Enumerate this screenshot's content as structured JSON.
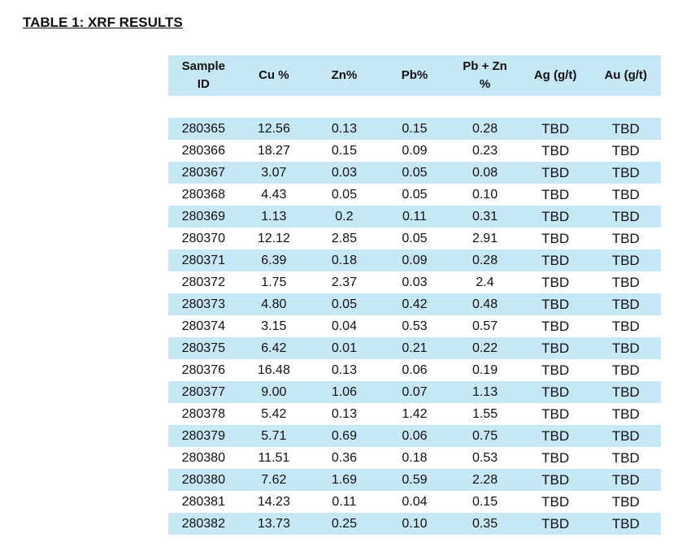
{
  "title": "TABLE 1:  XRF RESULTS",
  "table": {
    "headers": [
      "Sample ID",
      "Cu %",
      "Zn%",
      "Pb%",
      "Pb + Zn %",
      "Ag (g/t)",
      "Au (g/t)"
    ],
    "rows": [
      [
        "280365",
        "12.56",
        "0.13",
        "0.15",
        "0.28",
        "TBD",
        "TBD"
      ],
      [
        "280366",
        "18.27",
        "0.15",
        "0.09",
        "0.23",
        "TBD",
        "TBD"
      ],
      [
        "280367",
        "3.07",
        "0.03",
        "0.05",
        "0.08",
        "TBD",
        "TBD"
      ],
      [
        "280368",
        "4.43",
        "0.05",
        "0.05",
        "0.10",
        "TBD",
        "TBD"
      ],
      [
        "280369",
        "1.13",
        "0.2",
        "0.11",
        "0.31",
        "TBD",
        "TBD"
      ],
      [
        "280370",
        "12.12",
        "2.85",
        "0.05",
        "2.91",
        "TBD",
        "TBD"
      ],
      [
        "280371",
        "6.39",
        "0.18",
        "0.09",
        "0.28",
        "TBD",
        "TBD"
      ],
      [
        "280372",
        "1.75",
        "2.37",
        "0.03",
        "2.4",
        "TBD",
        "TBD"
      ],
      [
        "280373",
        "4.80",
        "0.05",
        "0.42",
        "0.48",
        "TBD",
        "TBD"
      ],
      [
        "280374",
        "3.15",
        "0.04",
        "0.53",
        "0.57",
        "TBD",
        "TBD"
      ],
      [
        "280375",
        "6.42",
        "0.01",
        "0.21",
        "0.22",
        "TBD",
        "TBD"
      ],
      [
        "280376",
        "16.48",
        "0.13",
        "0.06",
        "0.19",
        "TBD",
        "TBD"
      ],
      [
        "280377",
        "9.00",
        "1.06",
        "0.07",
        "1.13",
        "TBD",
        "TBD"
      ],
      [
        "280378",
        "5.42",
        "0.13",
        "1.42",
        "1.55",
        "TBD",
        "TBD"
      ],
      [
        "280379",
        "5.71",
        "0.69",
        "0.06",
        "0.75",
        "TBD",
        "TBD"
      ],
      [
        "280380",
        "11.51",
        "0.36",
        "0.18",
        "0.53",
        "TBD",
        "TBD"
      ],
      [
        "280380",
        "7.62",
        "1.69",
        "0.59",
        "2.28",
        "TBD",
        "TBD"
      ],
      [
        "280381",
        "14.23",
        "0.11",
        "0.04",
        "0.15",
        "TBD",
        "TBD"
      ],
      [
        "280382",
        "13.73",
        "0.25",
        "0.10",
        "0.35",
        "TBD",
        "TBD"
      ]
    ]
  }
}
